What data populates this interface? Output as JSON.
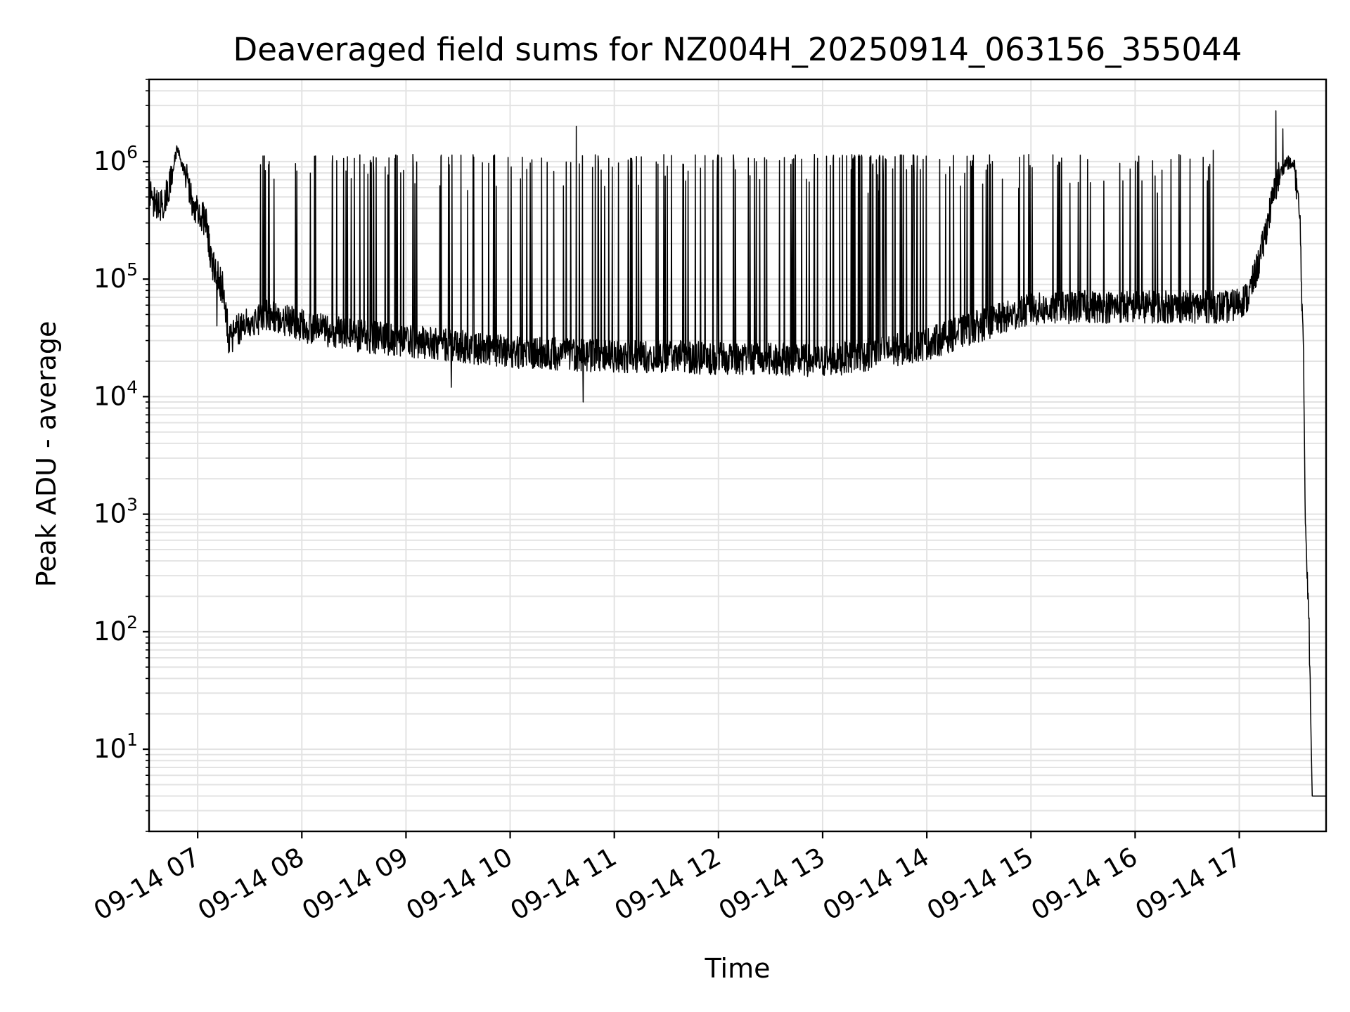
{
  "chart_data": {
    "type": "line",
    "title": "Deaveraged field sums for NZ004H_20250914_063156_355044",
    "xlabel": "Time",
    "ylabel": "Peak ADU - average",
    "y_scale": "log",
    "xlim": [
      "2025-09-14 06:32",
      "2025-09-14 17:50"
    ],
    "ylim": [
      2,
      5000000
    ],
    "x_ticks": [
      "09-14 07",
      "09-14 08",
      "09-14 09",
      "09-14 10",
      "09-14 11",
      "09-14 12",
      "09-14 13",
      "09-14 14",
      "09-14 15",
      "09-14 16",
      "09-14 17"
    ],
    "y_ticks": [
      {
        "base": "10",
        "exp": "1",
        "value": 10
      },
      {
        "base": "10",
        "exp": "2",
        "value": 100
      },
      {
        "base": "10",
        "exp": "3",
        "value": 1000
      },
      {
        "base": "10",
        "exp": "4",
        "value": 10000
      },
      {
        "base": "10",
        "exp": "5",
        "value": 100000
      },
      {
        "base": "10",
        "exp": "6",
        "value": 1000000
      }
    ],
    "grid": true,
    "grid_minor": true,
    "line_color": "#000000",
    "series": [
      {
        "baseline": [
          [
            "2025-09-14 06:32",
            600000
          ],
          [
            "2025-09-14 06:35",
            450000
          ],
          [
            "2025-09-14 06:40",
            420000
          ],
          [
            "2025-09-14 06:45",
            700000
          ],
          [
            "2025-09-14 06:48",
            1300000
          ],
          [
            "2025-09-14 06:52",
            900000
          ],
          [
            "2025-09-14 06:56",
            500000
          ],
          [
            "2025-09-14 07:00",
            380000
          ],
          [
            "2025-09-14 07:05",
            300000
          ],
          [
            "2025-09-14 07:08",
            140000
          ],
          [
            "2025-09-14 07:12",
            100000
          ],
          [
            "2025-09-14 07:15",
            80000
          ],
          [
            "2025-09-14 07:18",
            30000
          ],
          [
            "2025-09-14 07:25",
            40000
          ],
          [
            "2025-09-14 07:40",
            50000
          ],
          [
            "2025-09-14 08:00",
            40000
          ],
          [
            "2025-09-14 08:30",
            33000
          ],
          [
            "2025-09-14 09:00",
            30000
          ],
          [
            "2025-09-14 09:30",
            27000
          ],
          [
            "2025-09-14 10:00",
            24000
          ],
          [
            "2025-09-14 10:30",
            23000
          ],
          [
            "2025-09-14 11:00",
            22000
          ],
          [
            "2025-09-14 11:30",
            22000
          ],
          [
            "2025-09-14 12:00",
            21000
          ],
          [
            "2025-09-14 12:30",
            21000
          ],
          [
            "2025-09-14 13:00",
            20000
          ],
          [
            "2025-09-14 13:30",
            23000
          ],
          [
            "2025-09-14 14:00",
            28000
          ],
          [
            "2025-09-14 14:30",
            40000
          ],
          [
            "2025-09-14 15:00",
            55000
          ],
          [
            "2025-09-14 15:30",
            58000
          ],
          [
            "2025-09-14 16:00",
            58000
          ],
          [
            "2025-09-14 16:30",
            58000
          ],
          [
            "2025-09-14 16:55",
            58000
          ],
          [
            "2025-09-14 17:05",
            70000
          ],
          [
            "2025-09-14 17:12",
            150000
          ],
          [
            "2025-09-14 17:18",
            400000
          ],
          [
            "2025-09-14 17:22",
            700000
          ],
          [
            "2025-09-14 17:27",
            1000000
          ],
          [
            "2025-09-14 17:32",
            900000
          ],
          [
            "2025-09-14 17:35",
            300000
          ],
          [
            "2025-09-14 17:37",
            20000
          ],
          [
            "2025-09-14 17:38",
            1000
          ],
          [
            "2025-09-14 17:40",
            150
          ],
          [
            "2025-09-14 17:42",
            4
          ],
          [
            "2025-09-14 17:50",
            4
          ]
        ],
        "noise_decades": 0.28,
        "spike_peak": 1150000,
        "spike_regions": [
          {
            "from": "2025-09-14 07:30",
            "to": "2025-09-14 13:15",
            "count": 140
          },
          {
            "from": "2025-09-14 13:15",
            "to": "2025-09-14 14:00",
            "count": 50
          },
          {
            "from": "2025-09-14 14:00",
            "to": "2025-09-14 16:45",
            "count": 55
          }
        ],
        "notable_peaks": [
          [
            "2025-09-14 10:38",
            2000000
          ],
          [
            "2025-09-14 17:21",
            2700000
          ],
          [
            "2025-09-14 17:25",
            1900000
          ],
          [
            "2025-09-14 16:45",
            1250000
          ]
        ],
        "notable_dips": [
          [
            "2025-09-14 10:42",
            9000
          ],
          [
            "2025-09-14 09:26",
            12000
          ],
          [
            "2025-09-14 07:11",
            40000
          ]
        ]
      }
    ]
  }
}
